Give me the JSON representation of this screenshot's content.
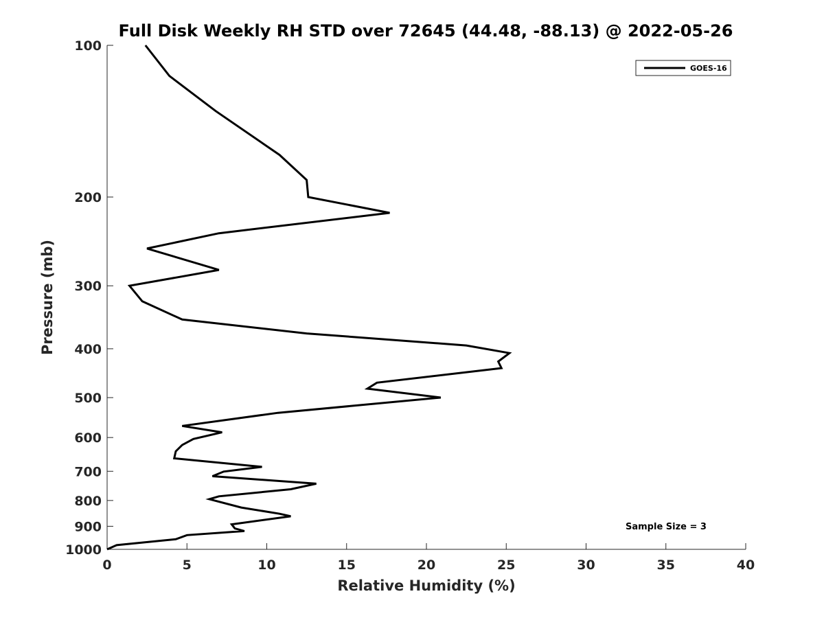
{
  "chart_data": {
    "type": "line",
    "title": "Full Disk Weekly RH STD over 72645 (44.48, -88.13) @ 2022-05-26",
    "xlabel": "Relative Humidity (%)",
    "ylabel": "Pressure (mb)",
    "xlim": [
      0,
      40
    ],
    "ylim": [
      1000,
      100
    ],
    "yscale": "log",
    "grid": false,
    "xticks": [
      0,
      5,
      10,
      15,
      20,
      25,
      30,
      35,
      40
    ],
    "yticks": [
      100,
      200,
      300,
      400,
      500,
      600,
      700,
      800,
      900,
      1000
    ],
    "legend": {
      "position": "top-right",
      "entries": [
        "GOES-16"
      ]
    },
    "annotation": "Sample Size = 3",
    "series": [
      {
        "name": "GOES-16",
        "color": "#000000",
        "points": [
          [
            2.4,
            100
          ],
          [
            3.9,
            115
          ],
          [
            6.8,
            135
          ],
          [
            10.8,
            165
          ],
          [
            12.5,
            185
          ],
          [
            12.6,
            200
          ],
          [
            17.7,
            215
          ],
          [
            7.0,
            236
          ],
          [
            2.5,
            253
          ],
          [
            7.0,
            279
          ],
          [
            1.4,
            300
          ],
          [
            2.2,
            322
          ],
          [
            4.7,
            350
          ],
          [
            12.5,
            373
          ],
          [
            22.5,
            394
          ],
          [
            25.2,
            408
          ],
          [
            24.5,
            424
          ],
          [
            24.7,
            437
          ],
          [
            16.9,
            467
          ],
          [
            16.3,
            480
          ],
          [
            20.9,
            500
          ],
          [
            10.7,
            536
          ],
          [
            4.7,
            569
          ],
          [
            7.2,
            586
          ],
          [
            5.4,
            604
          ],
          [
            4.7,
            621
          ],
          [
            4.3,
            639
          ],
          [
            4.2,
            660
          ],
          [
            9.7,
            686
          ],
          [
            7.3,
            701
          ],
          [
            6.6,
            716
          ],
          [
            13.1,
            741
          ],
          [
            11.5,
            760
          ],
          [
            7.0,
            785
          ],
          [
            6.4,
            795
          ],
          [
            8.4,
            826
          ],
          [
            10.8,
            850
          ],
          [
            11.5,
            860
          ],
          [
            7.8,
            892
          ],
          [
            8.0,
            909
          ],
          [
            8.6,
            920
          ],
          [
            5.0,
            937
          ],
          [
            4.3,
            955
          ],
          [
            0.6,
            981
          ],
          [
            0.0,
            1000
          ]
        ]
      }
    ]
  }
}
